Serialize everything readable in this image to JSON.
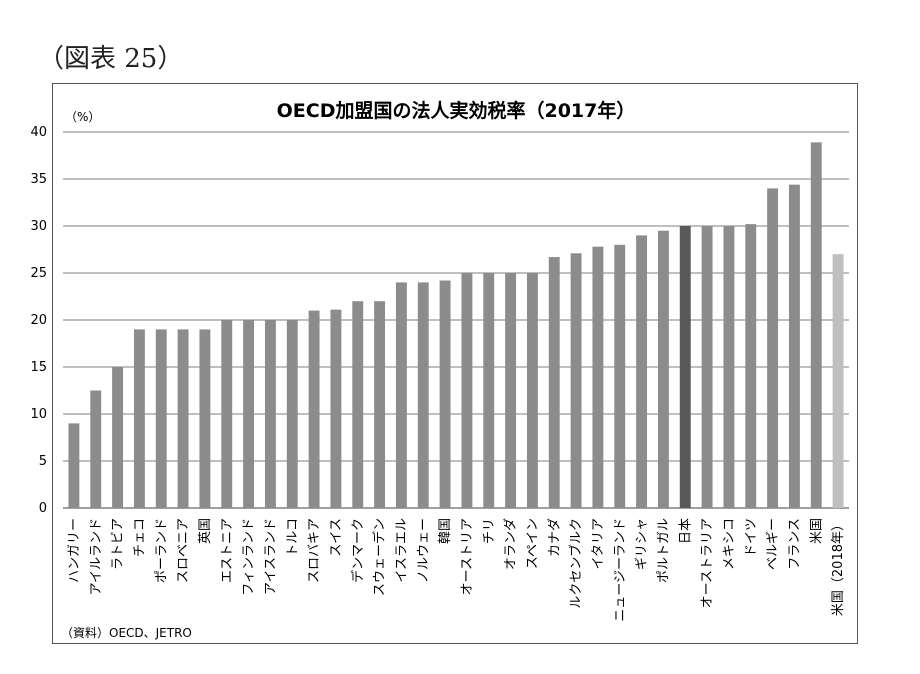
{
  "figure_caption": "（図表 25）",
  "source_note": "（資料）OECD、JETRO",
  "colors": {
    "bar": "#8c8c8c",
    "highlight": "#595959",
    "projection": "#bfbfbf",
    "grid": "#7f7f7f"
  },
  "chart_data": {
    "type": "bar",
    "title": "OECD加盟国の法人実効税率（2017年）",
    "unit_label": "（%）",
    "xlabel": "",
    "ylabel": "",
    "ylim": [
      0,
      40
    ],
    "yticks": [
      0,
      5,
      10,
      15,
      20,
      25,
      30,
      35,
      40
    ],
    "grid": true,
    "legend": "none",
    "categories": [
      "ハンガリー",
      "アイルランド",
      "ラトビア",
      "チェコ",
      "ポーランド",
      "スロベニア",
      "英国",
      "エストニア",
      "フィンランド",
      "アイスランド",
      "トルコ",
      "スロバキア",
      "スイス",
      "デンマーク",
      "スウェーデン",
      "イスラエル",
      "ノルウェー",
      "韓国",
      "オーストリア",
      "チリ",
      "オランダ",
      "スペイン",
      "カナダ",
      "ルクセンブルク",
      "イタリア",
      "ニュージーランド",
      "ギリシャ",
      "ポルトガル",
      "日本",
      "オーストラリア",
      "メキシコ",
      "ドイツ",
      "ベルギー",
      "フランス",
      "米国",
      "米国（2018年）"
    ],
    "values": [
      9,
      12.5,
      15,
      19,
      19,
      19,
      19,
      20,
      20,
      20,
      20,
      21,
      21.1,
      22,
      22,
      24,
      24,
      24.2,
      25,
      25,
      25,
      25,
      26.7,
      27.1,
      27.8,
      28,
      29,
      29.5,
      30,
      30,
      30,
      30.2,
      34,
      34.4,
      38.9,
      27
    ],
    "highlight_categories": [
      "日本"
    ],
    "projection_categories": [
      "米国（2018年）"
    ]
  }
}
